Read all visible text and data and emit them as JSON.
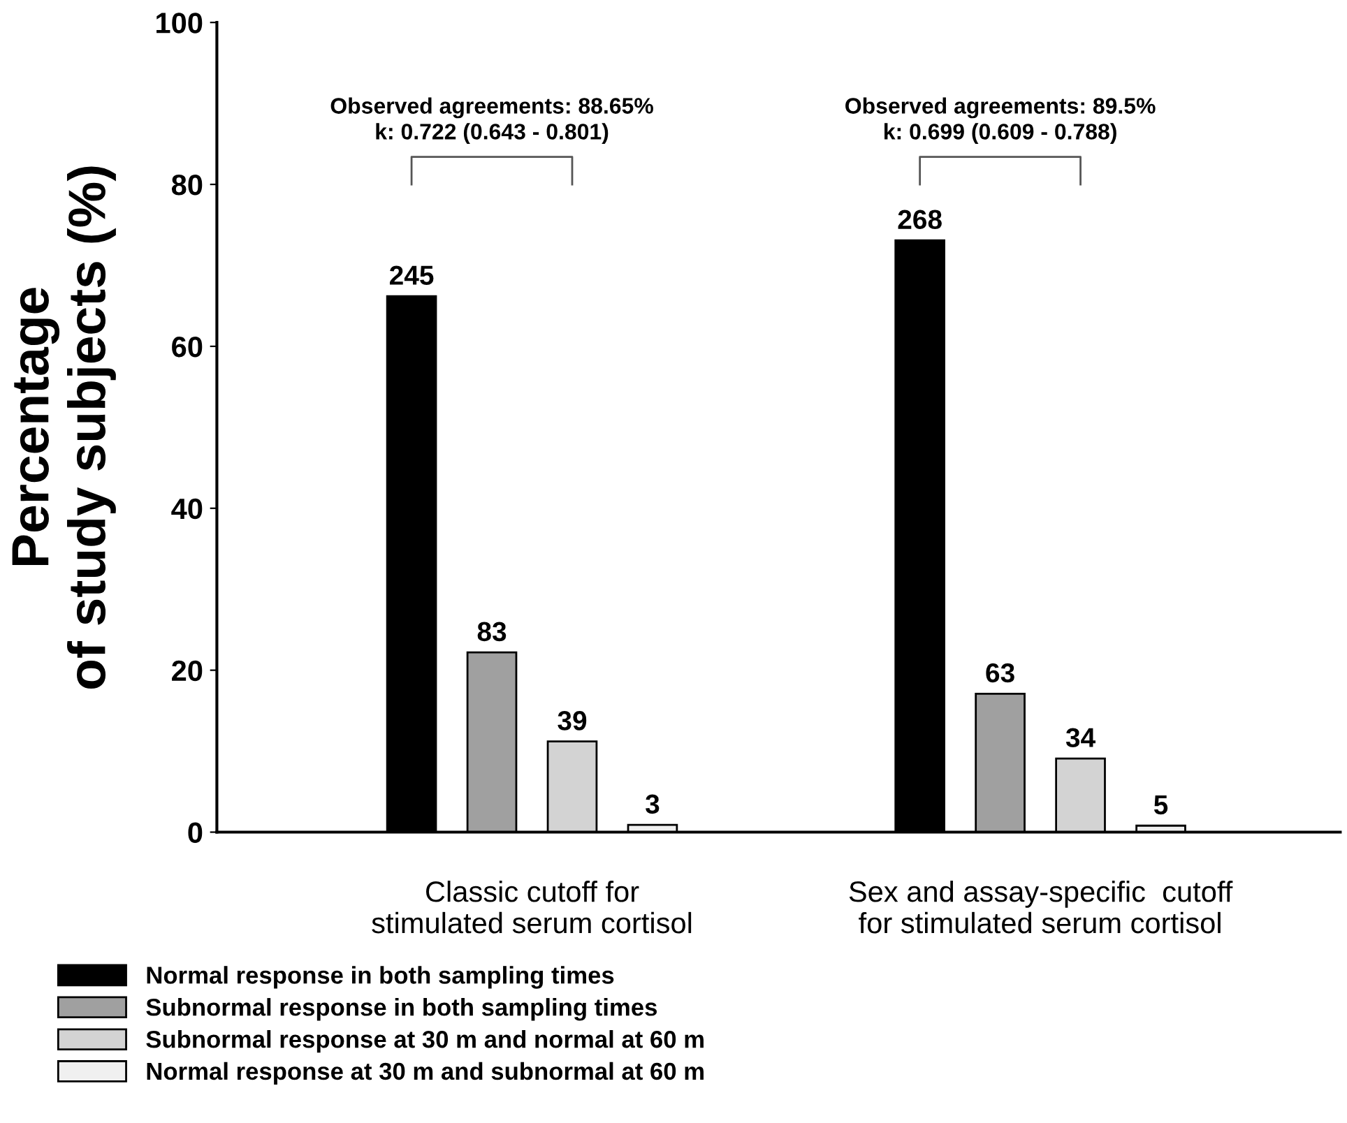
{
  "chart_data": {
    "type": "bar",
    "ylabel": "Percentage\nof study subjects (%)",
    "categories": [
      "Classic cutoff for\nstimulated serum cortisol",
      "Sex and assay-specific  cutoff\nfor stimulated serum cortisol"
    ],
    "series": [
      {
        "name": "Normal response in both sampling times",
        "color": "#000000",
        "values": [
          66.2,
          73.1
        ]
      },
      {
        "name": "Subnormal response in both sampling times",
        "color": "#a0a0a0",
        "values": [
          22.2,
          17.1
        ]
      },
      {
        "name": "Subnormal response at 30 m and normal at 60 m",
        "color": "#d3d3d3",
        "values": [
          11.2,
          9.1
        ]
      },
      {
        "name": "Normal response at 30 m and subnormal at 60 m",
        "color": "#f0f0f0",
        "values": [
          0.9,
          0.8
        ]
      }
    ],
    "annotations": [
      "Observed agreements: 88.65%\nk: 0.722 (0.643 - 0.801)",
      "Observed agreements: 89.5%\nk: 0.699 (0.609 - 0.788)",
      "245",
      "83",
      "39",
      "3",
      "268",
      "63",
      "34",
      "5"
    ],
    "ylim": [
      0,
      100
    ],
    "yticks": [
      0,
      20,
      40,
      60,
      80,
      100
    ],
    "grid": false,
    "legend": "bottom"
  }
}
